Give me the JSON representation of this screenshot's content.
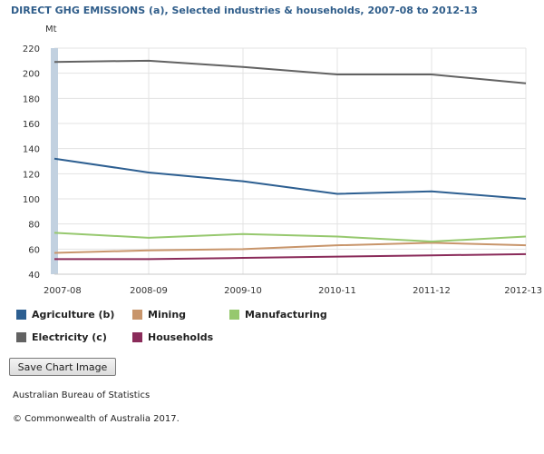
{
  "chart_data": {
    "type": "line",
    "title": "DIRECT GHG EMISSIONS (a), Selected industries & households, 2007-08 to 2012-13",
    "ylabel": "Mt",
    "categories": [
      "2007-08",
      "2008-09",
      "2009-10",
      "2010-11",
      "2011-12",
      "2012-13"
    ],
    "ylim": [
      40,
      220
    ],
    "yticks": [
      40,
      60,
      80,
      100,
      120,
      140,
      160,
      180,
      200,
      220
    ],
    "grid": true,
    "legend_position": "bottom",
    "series": [
      {
        "name": "Agriculture (b)",
        "color": "#2d5f91",
        "values": [
          132,
          121,
          114,
          104,
          106,
          100
        ]
      },
      {
        "name": "Mining",
        "color": "#c8956b",
        "values": [
          57,
          59,
          60,
          63,
          65,
          63
        ]
      },
      {
        "name": "Manufacturing",
        "color": "#96c86e",
        "values": [
          73,
          69,
          72,
          70,
          66,
          70
        ]
      },
      {
        "name": "Electricity (c)",
        "color": "#626262",
        "values": [
          209,
          210,
          205,
          199,
          199,
          192
        ]
      },
      {
        "name": "Households",
        "color": "#8a2b5a",
        "values": [
          52,
          52,
          53,
          54,
          55,
          56
        ]
      }
    ]
  },
  "ui": {
    "save_button_label": "Save Chart Image",
    "source_text": "Australian Bureau of Statistics",
    "copyright_text": "© Commonwealth of Australia 2017.",
    "highlight_color": "#c2d1e0"
  }
}
